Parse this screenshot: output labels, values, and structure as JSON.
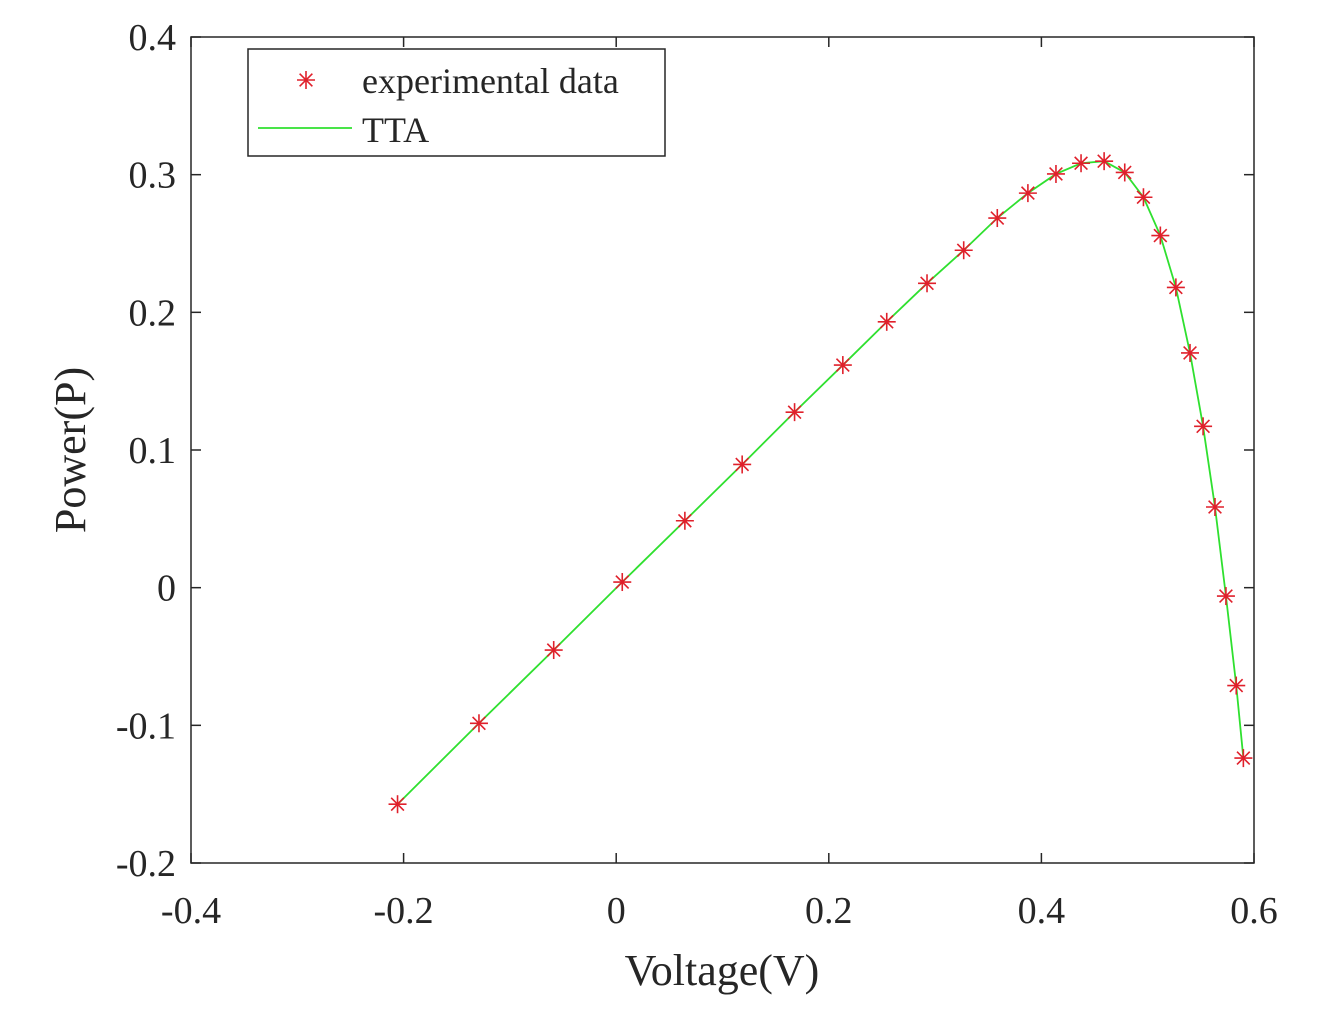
{
  "chart_data": {
    "type": "line",
    "title": "",
    "xlabel": "Voltage(V)",
    "ylabel": "Power(P)",
    "xlim": [
      -0.4,
      0.6
    ],
    "ylim": [
      -0.2,
      0.4
    ],
    "xticks": [
      -0.4,
      -0.2,
      0,
      0.2,
      0.4,
      0.6
    ],
    "yticks": [
      -0.2,
      -0.1,
      0,
      0.1,
      0.2,
      0.3,
      0.4
    ],
    "xtick_labels": [
      "-0.4",
      "-0.2",
      "0",
      "0.2",
      "0.4",
      "0.6"
    ],
    "ytick_labels": [
      "-0.2",
      "-0.1",
      "0",
      "0.1",
      "0.2",
      "0.3",
      "0.4"
    ],
    "grid": false,
    "legend": {
      "position": "top-left",
      "entries": [
        "experimental data",
        "TTA"
      ]
    },
    "series": [
      {
        "name": "experimental data",
        "style": "markers",
        "marker": "asterisk",
        "color": "#e0202b",
        "x": [
          -0.2057,
          -0.1291,
          -0.0588,
          0.0057,
          0.0646,
          0.1185,
          0.1678,
          0.2132,
          0.2545,
          0.2924,
          0.3269,
          0.3585,
          0.3873,
          0.4137,
          0.4373,
          0.459,
          0.4784,
          0.496,
          0.5119,
          0.5265,
          0.5398,
          0.5521,
          0.5633,
          0.5736,
          0.5833,
          0.59
        ],
        "y": [
          -0.1573,
          -0.0985,
          -0.0453,
          0.0041,
          0.0486,
          0.0895,
          0.1275,
          0.1617,
          0.1931,
          0.2211,
          0.2451,
          0.2685,
          0.2866,
          0.3005,
          0.3083,
          0.3098,
          0.3016,
          0.2836,
          0.2558,
          0.2181,
          0.1705,
          0.1172,
          0.0586,
          -0.0061,
          -0.0711,
          -0.1238
        ]
      },
      {
        "name": "TTA",
        "style": "line",
        "color": "#2fe02f",
        "x": [
          -0.2057,
          -0.1291,
          -0.0588,
          0.0057,
          0.0646,
          0.1185,
          0.1678,
          0.2132,
          0.2545,
          0.2924,
          0.3269,
          0.3585,
          0.3873,
          0.4137,
          0.4373,
          0.459,
          0.4784,
          0.496,
          0.5119,
          0.5265,
          0.5398,
          0.5521,
          0.5633,
          0.5736,
          0.5833,
          0.59
        ],
        "y": [
          -0.1573,
          -0.0985,
          -0.0453,
          0.0041,
          0.0486,
          0.0895,
          0.1275,
          0.1617,
          0.1931,
          0.2211,
          0.2451,
          0.2685,
          0.2866,
          0.3005,
          0.3083,
          0.3098,
          0.3016,
          0.2836,
          0.2558,
          0.2181,
          0.1705,
          0.1172,
          0.0586,
          -0.0061,
          -0.0711,
          -0.1238
        ]
      }
    ]
  }
}
